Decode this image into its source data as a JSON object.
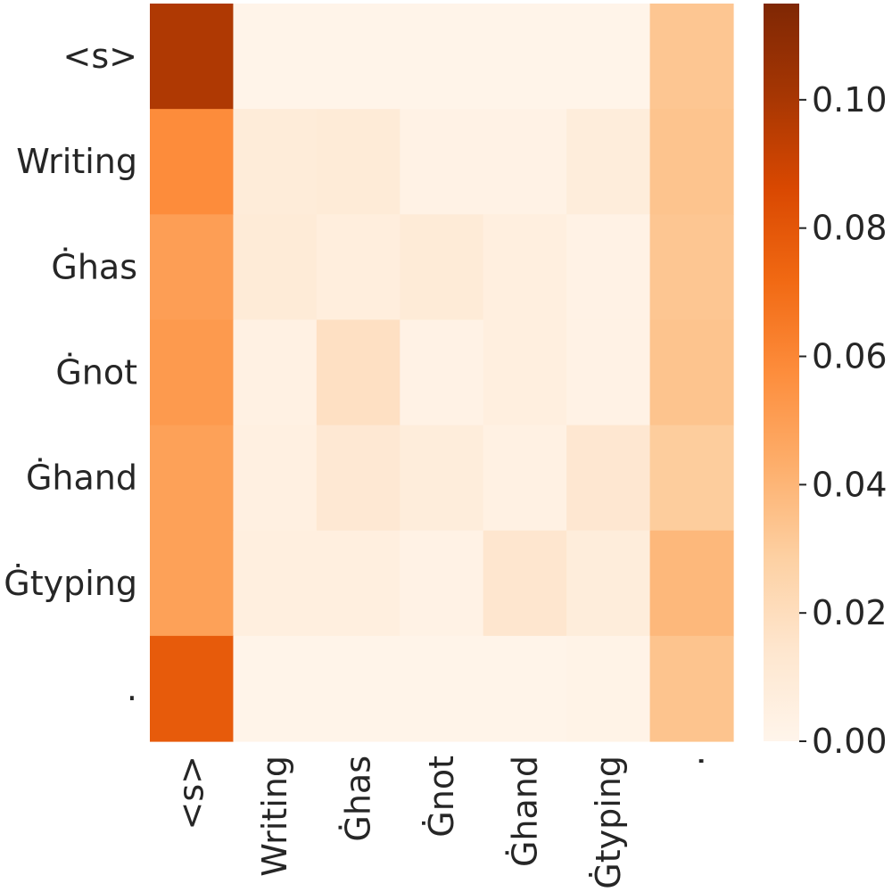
{
  "chart_data": {
    "type": "heatmap",
    "title": "",
    "xlabel": "",
    "ylabel": "",
    "x_categories": [
      "<s>",
      "Writing",
      "Ġhas",
      "Ġnot",
      "Ġhand",
      "Ġtyping",
      "."
    ],
    "y_categories": [
      "<s>",
      "Writing",
      "Ġhas",
      "Ġnot",
      "Ġhand",
      "Ġtyping",
      "."
    ],
    "values": [
      [
        0.098,
        0.001,
        0.001,
        0.001,
        0.001,
        0.001,
        0.033
      ],
      [
        0.058,
        0.009,
        0.01,
        0.003,
        0.003,
        0.008,
        0.034
      ],
      [
        0.05,
        0.01,
        0.007,
        0.01,
        0.006,
        0.003,
        0.033
      ],
      [
        0.052,
        0.004,
        0.018,
        0.003,
        0.006,
        0.003,
        0.034
      ],
      [
        0.049,
        0.005,
        0.012,
        0.008,
        0.004,
        0.013,
        0.03
      ],
      [
        0.049,
        0.006,
        0.006,
        0.003,
        0.014,
        0.008,
        0.039
      ],
      [
        0.078,
        0.001,
        0.001,
        0.001,
        0.001,
        0.002,
        0.034
      ]
    ],
    "colorbar": {
      "min": 0.0,
      "max": 0.115,
      "ticks": [
        0.0,
        0.02,
        0.04,
        0.06,
        0.08,
        0.1
      ],
      "tick_labels": [
        "0.00",
        "0.02",
        "0.04",
        "0.06",
        "0.08",
        "0.10"
      ],
      "colormap": "Oranges",
      "stops": [
        "#fff5eb",
        "#fee6ce",
        "#fdd0a2",
        "#fdae6b",
        "#fd8d3c",
        "#f16913",
        "#d94801",
        "#a63603",
        "#7f2704"
      ]
    },
    "grid": false,
    "legend": "colorbar-right"
  }
}
